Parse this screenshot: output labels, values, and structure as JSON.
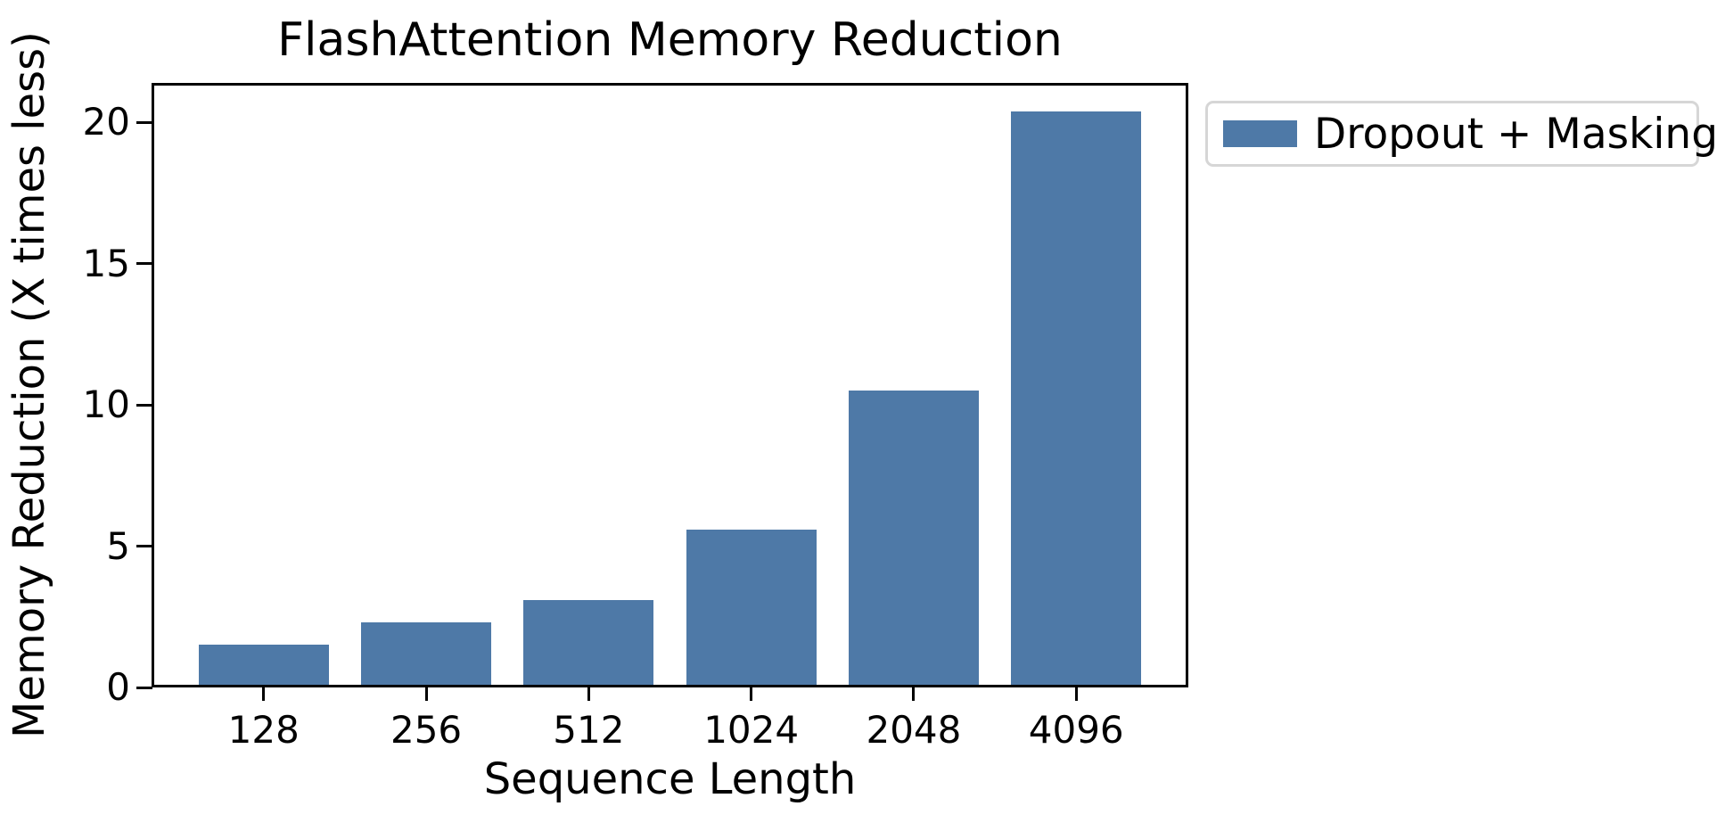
{
  "chart_data": {
    "type": "bar",
    "title": "FlashAttention Memory Reduction",
    "xlabel": "Sequence Length",
    "ylabel": "Memory Reduction (X times less)",
    "categories": [
      "128",
      "256",
      "512",
      "1024",
      "2048",
      "4096"
    ],
    "series": [
      {
        "name": "Dropout + Masking",
        "color": "#4E79A7",
        "values": [
          1.5,
          2.3,
          3.1,
          5.6,
          10.5,
          20.4
        ]
      }
    ],
    "yticks": [
      0,
      5,
      10,
      15,
      20
    ],
    "ylim": [
      0,
      21.4
    ],
    "xlim_units": [
      -0.69,
      5.69
    ],
    "bar_width_units": 0.8,
    "grid": false,
    "legend": {
      "position": "outside-upper-right",
      "entries": [
        {
          "label": "Dropout + Masking",
          "swatch_color": "#4E79A7"
        }
      ],
      "border_color": "#d6d6d6",
      "background": "#ffffff"
    },
    "axis_color": "#000000",
    "text_color": "#000000",
    "background": "#ffffff"
  }
}
